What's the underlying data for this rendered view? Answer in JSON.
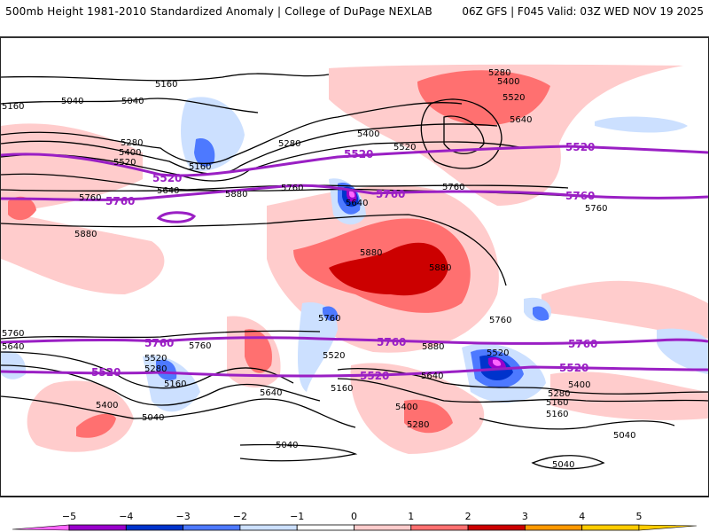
{
  "header": {
    "title_left": "500mb Height 1981-2010 Standardized Anomaly | College of DuPage NEXLAB",
    "title_right": "06Z GFS | F045 Valid: 03Z WED NOV 19 2025"
  },
  "map": {
    "contour_color": "#000000",
    "highlight_color": "#9a1fc4",
    "contour_labels": [
      "5160",
      "5040",
      "5040",
      "5160",
      "5280",
      "5400",
      "5520",
      "5160",
      "5640",
      "5760",
      "5880",
      "5280",
      "5400",
      "5520",
      "5760",
      "5640",
      "5760",
      "5280",
      "5400",
      "5520",
      "5640",
      "5760",
      "5880",
      "5880",
      "5880",
      "5760",
      "5640",
      "5520",
      "5280",
      "5160",
      "5400",
      "5040",
      "5760",
      "5760",
      "5520",
      "5160",
      "5640",
      "5640",
      "5400",
      "5280",
      "5040",
      "5880",
      "5760",
      "5520",
      "5400",
      "5280",
      "5160",
      "5160",
      "5040",
      "5040"
    ],
    "highlight_labels": [
      "5520",
      "5520",
      "5760",
      "5760",
      "5520",
      "5760",
      "5760",
      "5520",
      "5760",
      "5760",
      "5520",
      "5520",
      "5760",
      "5520"
    ]
  },
  "colorbar": {
    "ticks": [
      "-5",
      "-4",
      "-3",
      "-2",
      "-1",
      "0",
      "1",
      "2",
      "3",
      "4",
      "5"
    ],
    "colors": [
      "#ff66ff",
      "#9900cc",
      "#0033cc",
      "#4d79ff",
      "#cce0ff",
      "#ffffff",
      "#ffcccc",
      "#ff7070",
      "#cc0000",
      "#ff9900",
      "#ffcc00"
    ]
  }
}
